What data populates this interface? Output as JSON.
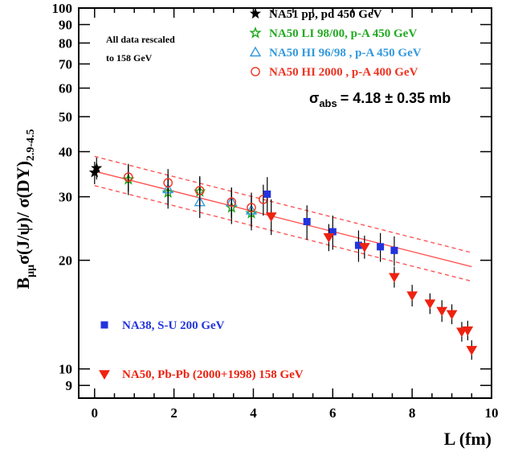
{
  "chart_data": {
    "type": "scatter",
    "xlabel": "L (fm)",
    "ylabel": "B_μμ σ(J/ψ)/ σ(DY)_2.9-4.5",
    "xlim": [
      -0.4,
      10
    ],
    "ylim": [
      8.3,
      100
    ],
    "log_y": true,
    "x_ticks": [
      0,
      2,
      4,
      6,
      8,
      10
    ],
    "y_ticks": [
      9,
      10,
      20,
      30,
      40,
      50,
      60,
      70,
      80,
      90,
      100
    ],
    "annotation_lines": [
      "All data rescaled",
      "to 158 GeV"
    ],
    "sigma_abs": {
      "symbol": "σ",
      "subscript": "abs",
      "value": "= 4.18 ± 0.35 mb"
    },
    "fit": {
      "center": {
        "x": [
          0,
          9.5
        ],
        "y": [
          35.3,
          19.2
        ]
      },
      "upper": {
        "x": [
          0,
          9.5
        ],
        "y": [
          38.8,
          21.0
        ]
      },
      "lower": {
        "x": [
          0,
          9.5
        ],
        "y": [
          32.2,
          17.5
        ]
      },
      "color": "#ff5555"
    },
    "series": [
      {
        "name": "NA51 pp, pd 450 GeV",
        "marker": "star-filled",
        "color": "#000000",
        "points": [
          {
            "x": 0.0,
            "y": 35.0,
            "err": 2.5
          },
          {
            "x": 0.05,
            "y": 36.0,
            "err": 2.5
          }
        ]
      },
      {
        "name": "NA50 LI 98/00, p-A 450 GeV",
        "marker": "star-open",
        "color": "#22aa22",
        "points": [
          {
            "x": 0.85,
            "y": 33.5,
            "err": 3.2
          },
          {
            "x": 1.85,
            "y": 30.8,
            "err": 3.0
          },
          {
            "x": 2.65,
            "y": 31.0,
            "err": 3.0
          },
          {
            "x": 3.45,
            "y": 28.0,
            "err": 2.8
          },
          {
            "x": 3.95,
            "y": 27.0,
            "err": 2.8
          }
        ]
      },
      {
        "name": "NA50 HI 96/98 , p-A 450 GeV",
        "marker": "triangle-open",
        "color": "#3399dd",
        "points": [
          {
            "x": 1.85,
            "y": 31.5,
            "err": 3.0
          },
          {
            "x": 2.65,
            "y": 29.0,
            "err": 2.8
          },
          {
            "x": 3.45,
            "y": 29.0,
            "err": 2.8
          },
          {
            "x": 3.95,
            "y": 27.5,
            "err": 2.8
          }
        ]
      },
      {
        "name": "NA50 HI 2000 , p-A 400 GeV",
        "marker": "circle-open",
        "color": "#ee3322",
        "points": [
          {
            "x": 0.85,
            "y": 34.0,
            "err": 3.0
          },
          {
            "x": 1.85,
            "y": 32.8,
            "err": 3.0
          },
          {
            "x": 2.65,
            "y": 31.2,
            "err": 3.0
          },
          {
            "x": 3.45,
            "y": 29.0,
            "err": 2.8
          },
          {
            "x": 3.95,
            "y": 28.0,
            "err": 2.8
          },
          {
            "x": 4.25,
            "y": 29.5,
            "err": 2.9
          }
        ]
      },
      {
        "name": "NA38, S-U 200 GeV",
        "marker": "square-filled",
        "color": "#2233dd",
        "points": [
          {
            "x": 4.35,
            "y": 30.5,
            "err": 3.5
          },
          {
            "x": 5.35,
            "y": 25.6,
            "err": 2.8
          },
          {
            "x": 6.0,
            "y": 24.0,
            "err": 2.6
          },
          {
            "x": 6.65,
            "y": 22.0,
            "err": 2.2
          },
          {
            "x": 7.2,
            "y": 21.8,
            "err": 2.0
          },
          {
            "x": 7.55,
            "y": 21.3,
            "err": 2.0
          }
        ]
      },
      {
        "name": "NA50, Pb-Pb (2000+1998) 158 GeV",
        "marker": "triangle-down-filled",
        "color": "#ee2211",
        "points": [
          {
            "x": 4.45,
            "y": 26.5,
            "err": 3.0
          },
          {
            "x": 5.9,
            "y": 23.2,
            "err": 2.0
          },
          {
            "x": 6.8,
            "y": 21.8,
            "err": 1.6
          },
          {
            "x": 7.55,
            "y": 18.0,
            "err": 1.2
          },
          {
            "x": 8.0,
            "y": 16.0,
            "err": 1.1
          },
          {
            "x": 8.45,
            "y": 15.2,
            "err": 1.0
          },
          {
            "x": 8.75,
            "y": 14.5,
            "err": 1.0
          },
          {
            "x": 9.0,
            "y": 14.2,
            "err": 0.9
          },
          {
            "x": 9.25,
            "y": 12.7,
            "err": 0.8
          },
          {
            "x": 9.4,
            "y": 12.8,
            "err": 0.8
          },
          {
            "x": 9.5,
            "y": 11.3,
            "err": 0.7
          }
        ]
      }
    ]
  }
}
